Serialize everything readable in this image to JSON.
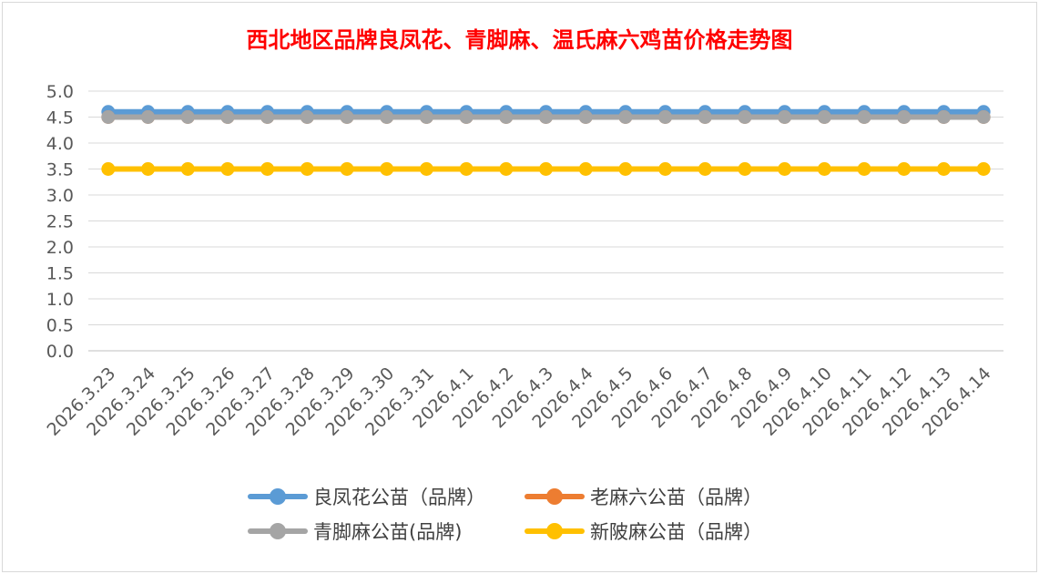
{
  "chart_data": {
    "type": "line",
    "title": "西北地区品牌良凤花、青脚麻、温氏麻六鸡苗价格走势图",
    "xlabel": "",
    "ylabel": "",
    "ylim": [
      0,
      5
    ],
    "ytick_step": 0.5,
    "y_decimals": 1,
    "grid": true,
    "legend_position": "bottom",
    "categories": [
      "2026.3.23",
      "2026.3.24",
      "2026.3.25",
      "2026.3.26",
      "2026.3.27",
      "2026.3.28",
      "2026.3.29",
      "2026.3.30",
      "2026.3.31",
      "2026.4.1",
      "2026.4.2",
      "2026.4.3",
      "2026.4.4",
      "2026.4.5",
      "2026.4.6",
      "2026.4.7",
      "2026.4.8",
      "2026.4.9",
      "2026.4.10",
      "2026.4.11",
      "2026.4.12",
      "2026.4.13",
      "2026.4.14"
    ],
    "series": [
      {
        "name": "良凤花公苗（品牌）",
        "color": "#5b9bd5",
        "values": [
          4.6,
          4.6,
          4.6,
          4.6,
          4.6,
          4.6,
          4.6,
          4.6,
          4.6,
          4.6,
          4.6,
          4.6,
          4.6,
          4.6,
          4.6,
          4.6,
          4.6,
          4.6,
          4.6,
          4.6,
          4.6,
          4.6,
          4.6
        ]
      },
      {
        "name": "老麻六公苗（品牌）",
        "color": "#ed7d31",
        "values": [
          4.5,
          4.5,
          4.5,
          4.5,
          4.5,
          4.5,
          4.5,
          4.5,
          4.5,
          4.5,
          4.5,
          4.5,
          4.5,
          4.5,
          4.5,
          4.5,
          4.5,
          4.5,
          4.5,
          4.5,
          4.5,
          4.5,
          4.5
        ]
      },
      {
        "name": "青脚麻公苗(品牌)",
        "color": "#a5a5a5",
        "values": [
          4.5,
          4.5,
          4.5,
          4.5,
          4.5,
          4.5,
          4.5,
          4.5,
          4.5,
          4.5,
          4.5,
          4.5,
          4.5,
          4.5,
          4.5,
          4.5,
          4.5,
          4.5,
          4.5,
          4.5,
          4.5,
          4.5,
          4.5
        ]
      },
      {
        "name": "新陂麻公苗（品牌）",
        "color": "#ffc000",
        "values": [
          3.5,
          3.5,
          3.5,
          3.5,
          3.5,
          3.5,
          3.5,
          3.5,
          3.5,
          3.5,
          3.5,
          3.5,
          3.5,
          3.5,
          3.5,
          3.5,
          3.5,
          3.5,
          3.5,
          3.5,
          3.5,
          3.5,
          3.5
        ]
      }
    ]
  }
}
